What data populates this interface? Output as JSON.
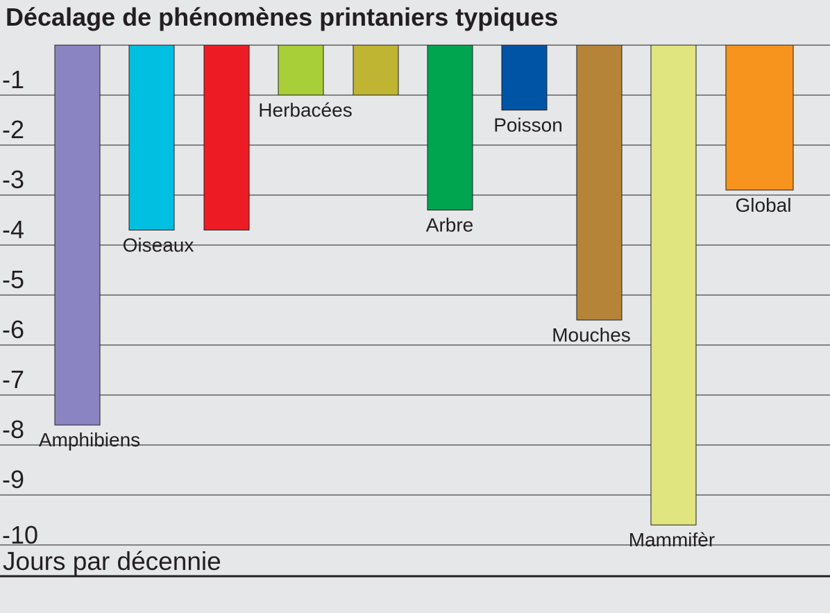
{
  "chart_data": {
    "type": "bar",
    "title": "Décalage de phénomènes printaniers typiques",
    "ylabel": "Jours par décennie",
    "xlabel": "",
    "orientation": "downward-from-zero",
    "ylim": [
      0,
      -10
    ],
    "y_ticks": [
      "-1",
      "-2",
      "-3",
      "-4",
      "-5",
      "-6",
      "-7",
      "-8",
      "-9",
      "-10"
    ],
    "grid": true,
    "categories": [
      "Amphibiens",
      "Oiseaux",
      "",
      "Herbacées",
      "",
      "Arbre",
      "Poisson",
      "Mouches",
      "Mammifèr",
      "Global"
    ],
    "values": [
      -7.6,
      -3.7,
      -3.7,
      -1.0,
      -1.0,
      -3.3,
      -1.3,
      -5.5,
      -9.6,
      -2.9
    ],
    "colors": [
      "#8a84c2",
      "#00bfe0",
      "#ed1c24",
      "#a8cf38",
      "#bfb532",
      "#00a550",
      "#0054a6",
      "#b58438",
      "#e0e57f",
      "#f7941d"
    ],
    "labels": [
      {
        "text": "Amphibiens",
        "bar": 0
      },
      {
        "text": "Oiseaux",
        "bar": 1
      },
      {
        "text": "Herbacées",
        "bar": 3
      },
      {
        "text": "Arbre",
        "bar": 5
      },
      {
        "text": "Poisson",
        "bar": 6
      },
      {
        "text": "Mouches",
        "bar": 7
      },
      {
        "text": "Mammifèr",
        "bar": 8
      },
      {
        "text": "Global",
        "bar": 9
      }
    ]
  }
}
